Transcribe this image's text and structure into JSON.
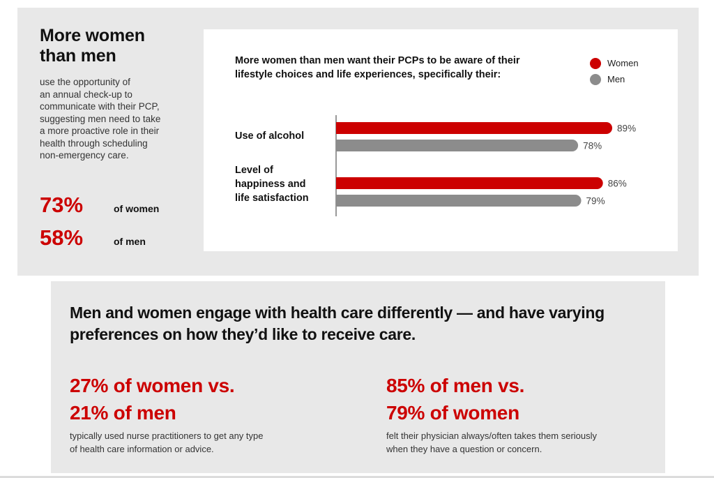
{
  "left": {
    "title_line1": "More women",
    "title_line2": "than men",
    "body": "use the opportunity of\nan annual check-up  to\ncommunicate with their PCP,\nsuggesting men need to take\na more proactive role in their\nhealth through scheduling\nnon-emergency care.",
    "stats": [
      {
        "value": "73%",
        "label": "of women"
      },
      {
        "value": "58%",
        "label": "of men"
      }
    ]
  },
  "colors": {
    "accent": "#cc0000",
    "men": "#8c8c8c",
    "panel": "#e8e8e8"
  },
  "chart_data": {
    "type": "bar",
    "orientation": "horizontal",
    "title": "More women than men want their PCPs to be aware of their lifestyle choices and life experiences, specifically their:",
    "categories": [
      "Use of alcohol",
      "Level of happiness and life satisfaction"
    ],
    "category_lines": [
      [
        "Use of alcohol"
      ],
      [
        "Level of",
        "happiness and",
        "life satisfaction"
      ]
    ],
    "series": [
      {
        "name": "Women",
        "color": "#cc0000",
        "values": [
          89,
          86
        ],
        "labels": [
          "89%",
          "86%"
        ]
      },
      {
        "name": "Men",
        "color": "#8c8c8c",
        "values": [
          78,
          79
        ],
        "labels": [
          "78%",
          "79%"
        ]
      }
    ],
    "xlim": [
      0,
      100
    ],
    "unit": "%",
    "legend": "top-right",
    "grid": false
  },
  "bottom": {
    "title": "Men and women engage with health care differently — and have varying preferences on how they’d like to receive care.",
    "facts": [
      {
        "headline": "27% of women vs.\n21% of men",
        "body": "typically used nurse practitioners to get any type\nof health care information or advice."
      },
      {
        "headline": "85% of men vs.\n79% of women",
        "body": "felt their physician always/often takes them seriously\nwhen they have a question or concern."
      }
    ]
  }
}
